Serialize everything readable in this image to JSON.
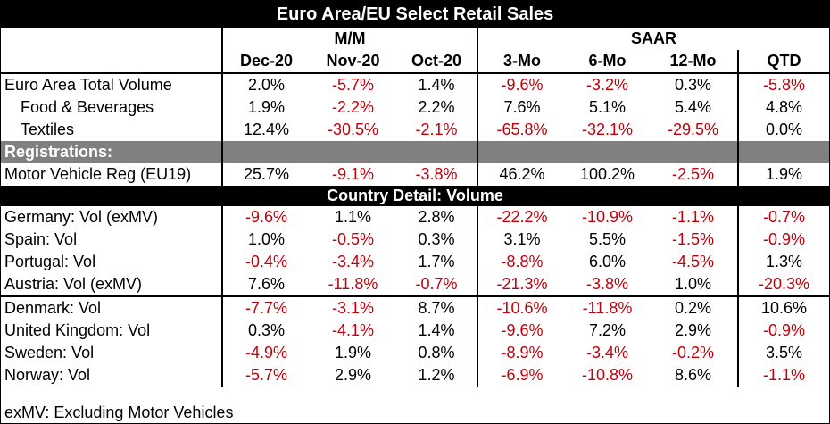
{
  "title": "Euro Area/EU Select Retail Sales",
  "headers": {
    "mm_group": "M/M",
    "saar_group": "SAAR",
    "columns": [
      "Dec-20",
      "Nov-20",
      "Oct-20",
      "3-Mo",
      "6-Mo",
      "12-Mo",
      "QTD"
    ]
  },
  "rows_top": [
    {
      "label": "Euro Area Total Volume",
      "values": [
        "2.0%",
        "-5.7%",
        "1.4%",
        "-9.6%",
        "-3.2%",
        "0.3%",
        "-5.8%"
      ]
    },
    {
      "label": "Food & Beverages",
      "values": [
        "1.9%",
        "-2.2%",
        "2.2%",
        "7.6%",
        "5.1%",
        "5.4%",
        "4.8%"
      ]
    },
    {
      "label": "Textiles",
      "values": [
        "12.4%",
        "-30.5%",
        "-2.1%",
        "-65.8%",
        "-32.1%",
        "-29.5%",
        "0.0%"
      ]
    }
  ],
  "registrations": {
    "section_label": "Registrations:",
    "rows": [
      {
        "label": "Motor Vehicle Reg (EU19)",
        "values": [
          "25.7%",
          "-9.1%",
          "-3.8%",
          "46.2%",
          "100.2%",
          "-2.5%",
          "1.9%"
        ]
      }
    ]
  },
  "country_detail": {
    "section_label": "Country Detail: Volume",
    "rows": [
      {
        "label": "Germany: Vol (exMV)",
        "values": [
          "-9.6%",
          "1.1%",
          "2.8%",
          "-22.2%",
          "-10.9%",
          "-1.1%",
          "-0.7%"
        ]
      },
      {
        "label": "Spain: Vol",
        "values": [
          "1.0%",
          "-0.5%",
          "0.3%",
          "3.1%",
          "5.5%",
          "-1.5%",
          "-0.9%"
        ]
      },
      {
        "label": "Portugal: Vol",
        "values": [
          "-0.4%",
          "-3.4%",
          "1.7%",
          "-8.8%",
          "6.0%",
          "-4.5%",
          "1.3%"
        ]
      },
      {
        "label": "Austria: Vol (exMV)",
        "values": [
          "7.6%",
          "-11.8%",
          "-0.7%",
          "-21.3%",
          "-3.8%",
          "1.0%",
          "-20.3%"
        ]
      },
      {
        "label": "Denmark: Vol",
        "values": [
          "-7.7%",
          "-3.1%",
          "8.7%",
          "-10.6%",
          "-11.8%",
          "0.2%",
          "10.6%"
        ]
      },
      {
        "label": "United Kingdom: Vol",
        "values": [
          "0.3%",
          "-4.1%",
          "1.4%",
          "-9.6%",
          "7.2%",
          "2.9%",
          "-0.9%"
        ]
      },
      {
        "label": "Sweden: Vol",
        "values": [
          "-4.9%",
          "1.9%",
          "0.8%",
          "-8.9%",
          "-3.4%",
          "-0.2%",
          "3.5%"
        ]
      },
      {
        "label": "Norway: Vol",
        "values": [
          "-5.7%",
          "2.9%",
          "1.2%",
          "-6.9%",
          "-10.8%",
          "8.6%",
          "-1.1%"
        ]
      }
    ]
  },
  "footnote": "exMV: Excluding Motor Vehicles",
  "colors": {
    "negative": "#c0000b",
    "section_gray": "#808080",
    "header_black": "#000000"
  }
}
